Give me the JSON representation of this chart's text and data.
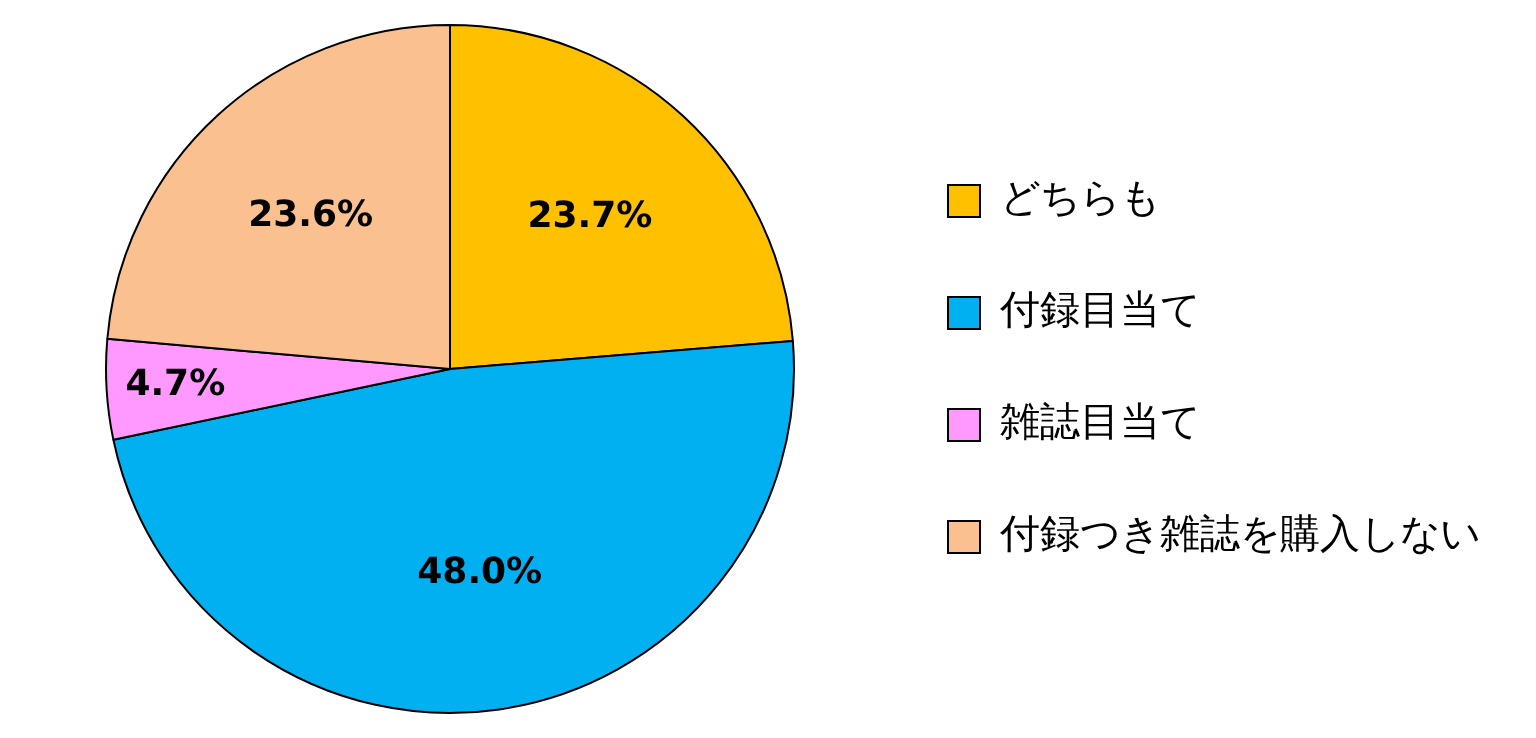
{
  "chart_data": {
    "type": "pie",
    "categories": [
      "どちらも",
      "付録目当て",
      "雑誌目当て",
      "付録つき雑誌を購入しない"
    ],
    "values": [
      23.7,
      48.0,
      4.7,
      23.6
    ],
    "value_labels": [
      "23.7%",
      "48.0%",
      "4.7%",
      "23.6%"
    ],
    "colors": [
      "#ffc000",
      "#00b0f0",
      "#ff99ff",
      "#fac090"
    ],
    "legend": "right"
  }
}
